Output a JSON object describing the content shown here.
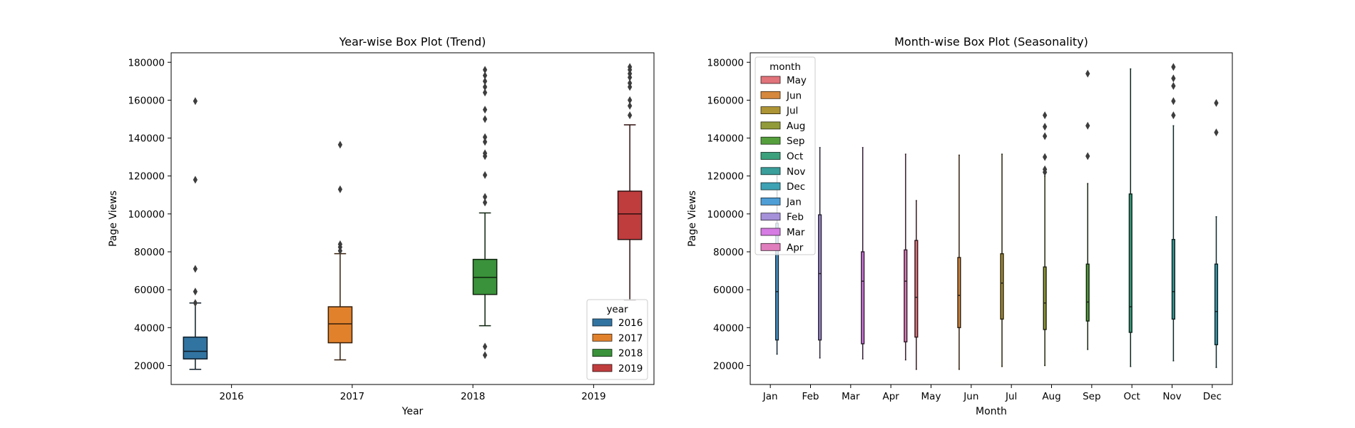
{
  "chart_data": [
    {
      "type": "box",
      "title": "Year-wise Box Plot (Trend)",
      "xlabel": "Year",
      "ylabel": "Page Views",
      "ylim": [
        10000,
        185000
      ],
      "yticks": [
        20000,
        40000,
        60000,
        80000,
        100000,
        120000,
        140000,
        160000,
        180000
      ],
      "categories": [
        "2016",
        "2017",
        "2018",
        "2019"
      ],
      "legend_title": "year",
      "legend_position": "lower right",
      "series": [
        {
          "name": "2016",
          "category": "2016",
          "color": "#3274a1",
          "q1": 23500,
          "median": 27500,
          "q3": 35000,
          "whisker_low": 18000,
          "whisker_high": 53000,
          "outliers": [
            53000,
            59000,
            71000,
            118000,
            159500
          ]
        },
        {
          "name": "2017",
          "category": "2017",
          "color": "#e1812c",
          "q1": 32000,
          "median": 42000,
          "q3": 51000,
          "whisker_low": 23000,
          "whisker_high": 79000,
          "outliers": [
            80500,
            82500,
            84000,
            113000,
            136500
          ]
        },
        {
          "name": "2018",
          "category": "2018",
          "color": "#3a923a",
          "q1": 57500,
          "median": 66500,
          "q3": 76000,
          "whisker_low": 41000,
          "whisker_high": 100500,
          "outliers": [
            25500,
            30000,
            106000,
            109000,
            120500,
            130500,
            132000,
            138000,
            140500,
            150000,
            155000,
            164000,
            167000,
            170000,
            173000,
            176000
          ]
        },
        {
          "name": "2019",
          "category": "2019",
          "color": "#c03d3e",
          "q1": 86500,
          "median": 100000,
          "q3": 112000,
          "whisker_low": 54500,
          "whisker_high": 147000,
          "outliers": [
            152000,
            157000,
            160000,
            167000,
            169000,
            172000,
            174000,
            176000,
            177500
          ]
        }
      ]
    },
    {
      "type": "box",
      "title": "Month-wise Box Plot (Seasonality)",
      "xlabel": "Month",
      "ylabel": "Page Views",
      "ylim": [
        10000,
        185000
      ],
      "yticks": [
        20000,
        40000,
        60000,
        80000,
        100000,
        120000,
        140000,
        160000,
        180000
      ],
      "categories": [
        "Jan",
        "Feb",
        "Mar",
        "Apr",
        "May",
        "Jun",
        "Jul",
        "Aug",
        "Sep",
        "Oct",
        "Nov",
        "Dec"
      ],
      "legend_title": "month",
      "legend_position": "upper left",
      "series": [
        {
          "name": "May",
          "category": "May",
          "color": "#e1737b",
          "q1": 35000,
          "median": 56000,
          "q3": 86000,
          "whisker_low": 18000,
          "whisker_high": 107000,
          "outliers": []
        },
        {
          "name": "Jun",
          "category": "Jun",
          "color": "#d5883e",
          "q1": 40000,
          "median": 57000,
          "q3": 77000,
          "whisker_low": 18000,
          "whisker_high": 131000,
          "outliers": []
        },
        {
          "name": "Jul",
          "category": "Jul",
          "color": "#ad9434",
          "q1": 44500,
          "median": 63500,
          "q3": 79000,
          "whisker_low": 19500,
          "whisker_high": 131500,
          "outliers": []
        },
        {
          "name": "Aug",
          "category": "Aug",
          "color": "#929b3a",
          "q1": 39000,
          "median": 53000,
          "q3": 72000,
          "whisker_low": 20000,
          "whisker_high": 120000,
          "outliers": [
            122000,
            123500,
            130000,
            141000,
            146000,
            152000
          ]
        },
        {
          "name": "Sep",
          "category": "Sep",
          "color": "#55a03d",
          "q1": 43500,
          "median": 53500,
          "q3": 73500,
          "whisker_low": 28500,
          "whisker_high": 116000,
          "outliers": [
            130500,
            146500,
            174000
          ]
        },
        {
          "name": "Oct",
          "category": "Oct",
          "color": "#3ba07c",
          "q1": 37500,
          "median": 51000,
          "q3": 110500,
          "whisker_low": 19500,
          "whisker_high": 176500,
          "outliers": []
        },
        {
          "name": "Nov",
          "category": "Nov",
          "color": "#3a9e9a",
          "q1": 44500,
          "median": 59000,
          "q3": 86500,
          "whisker_low": 22500,
          "whisker_high": 146500,
          "outliers": [
            152000,
            159500,
            167500,
            171500,
            177500
          ]
        },
        {
          "name": "Dec",
          "category": "Dec",
          "color": "#3da2b4",
          "q1": 31000,
          "median": 48500,
          "q3": 73500,
          "whisker_low": 19000,
          "whisker_high": 98500,
          "outliers": [
            143000,
            158500
          ]
        },
        {
          "name": "Jan",
          "category": "Jan",
          "color": "#4f9ed6",
          "q1": 33500,
          "median": 59000,
          "q3": 95000,
          "whisker_low": 26000,
          "whisker_high": 120000,
          "outliers": []
        },
        {
          "name": "Feb",
          "category": "Feb",
          "color": "#a591d9",
          "q1": 33500,
          "median": 68500,
          "q3": 99500,
          "whisker_low": 24000,
          "whisker_high": 135000,
          "outliers": []
        },
        {
          "name": "Mar",
          "category": "Mar",
          "color": "#d57be3",
          "q1": 31500,
          "median": 64500,
          "q3": 80000,
          "whisker_low": 23500,
          "whisker_high": 135000,
          "outliers": []
        },
        {
          "name": "Apr",
          "category": "Apr",
          "color": "#e07ebd",
          "q1": 32500,
          "median": 64500,
          "q3": 81000,
          "whisker_low": 23000,
          "whisker_high": 131500,
          "outliers": []
        }
      ]
    }
  ]
}
